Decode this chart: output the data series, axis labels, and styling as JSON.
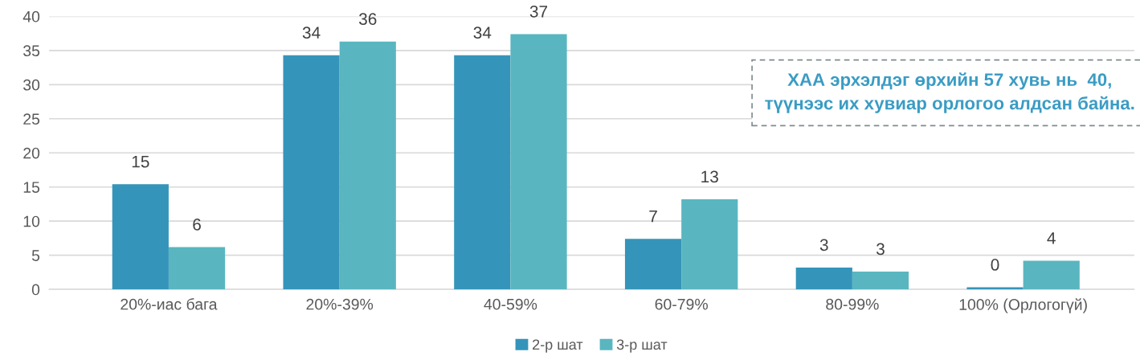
{
  "chart_data": {
    "type": "bar",
    "categories": [
      "20%-иас бага",
      "20%-39%",
      "40-59%",
      "60-79%",
      "80-99%",
      "100% (Орлогогүй)"
    ],
    "series": [
      {
        "name": "2-р шат",
        "color": "#3594ba",
        "values": [
          15.4,
          34.3,
          34.3,
          7.4,
          3.2,
          0.3
        ],
        "value_labels": [
          "15",
          "34",
          "34",
          "7",
          "3",
          "0"
        ]
      },
      {
        "name": "3-р шат",
        "color": "#59b6c0",
        "values": [
          6.2,
          36.3,
          37.4,
          13.2,
          2.6,
          4.2
        ],
        "value_labels": [
          "6",
          "36",
          "37",
          "13",
          "3",
          "4"
        ]
      }
    ],
    "ylim": [
      0,
      40
    ],
    "yticks": [
      0,
      5,
      10,
      15,
      20,
      25,
      30,
      35,
      40
    ],
    "grid": "y",
    "legend": "bottom",
    "annotations": [
      "ХАА эрхэлдэг өрхийн 57 хувь нь  40,\nтүүнээс их хувиар орлогоо алдсан байна."
    ]
  }
}
